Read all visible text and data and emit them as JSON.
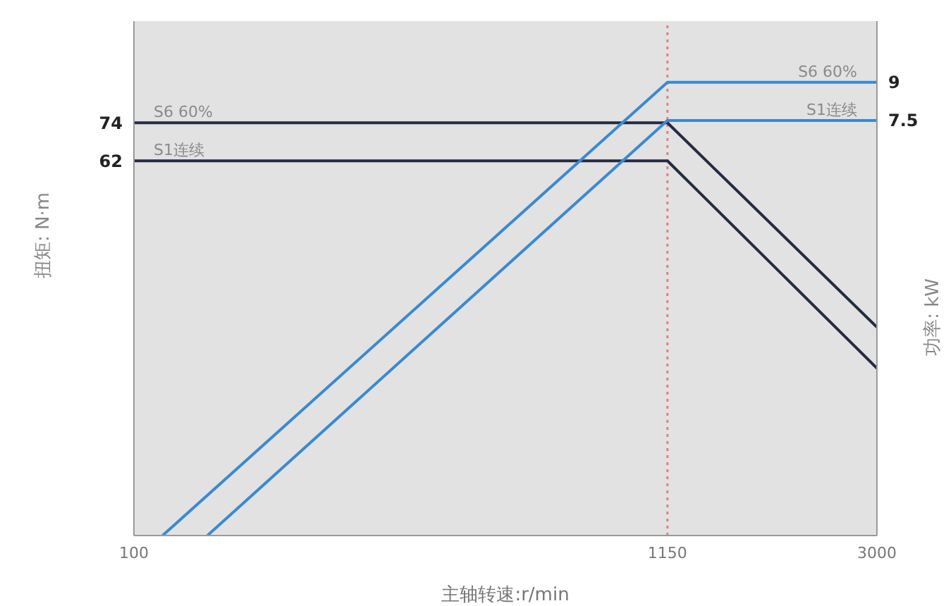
{
  "chart_data": {
    "type": "line",
    "xlabel": "主轴转速:r/min",
    "ylabel": "扭矩: N·m",
    "y2label": "功率: kW",
    "log": "x",
    "xlim": [
      100,
      3000
    ],
    "xticks": [
      100,
      1150,
      3000
    ],
    "ylim": [
      -56,
      106
    ],
    "yticks": [
      74,
      62
    ],
    "y2lim": [
      -8.8,
      11.4
    ],
    "y2ticks": [
      9,
      7.5
    ],
    "series": [
      {
        "name": "S6 60%",
        "color": "#262b40",
        "x": [
          100,
          1150,
          3000
        ],
        "values": [
          74,
          74,
          9.6
        ]
      },
      {
        "name": "S1连续",
        "color": "#262b40",
        "x": [
          100,
          1150,
          3000
        ],
        "values": [
          62,
          62,
          -3.3
        ]
      },
      {
        "name": "S6 60%",
        "color": "#3a8ad0",
        "axis": "y2",
        "x": [
          114,
          1150,
          3000
        ],
        "values": [
          -8.8,
          9,
          9
        ]
      },
      {
        "name": "S1连续",
        "color": "#3a8ad0",
        "axis": "y2",
        "x": [
          140,
          1150,
          3000
        ],
        "values": [
          -8.8,
          7.5,
          7.5
        ]
      }
    ],
    "ref_lines": [
      {
        "axis": "x",
        "value": 1150,
        "color": "#e08080",
        "line_style": "dotted"
      }
    ],
    "marker": "none",
    "line_style": "solid",
    "grid": false
  }
}
